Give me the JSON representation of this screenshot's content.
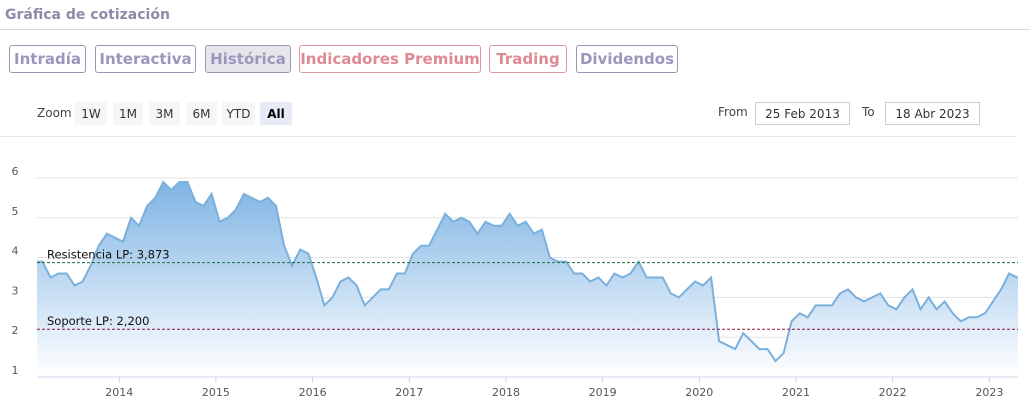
{
  "header": {
    "title": "Gráfica de cotización"
  },
  "tabs": [
    {
      "label": "Intradía",
      "state": "normal"
    },
    {
      "label": "Interactiva",
      "state": "normal"
    },
    {
      "label": "Histórica",
      "state": "active"
    },
    {
      "label": "Indicadores Premium",
      "state": "premium"
    },
    {
      "label": "Trading",
      "state": "premium"
    },
    {
      "label": "Dividendos",
      "state": "normal"
    }
  ],
  "range_selector": {
    "zoom_label": "Zoom",
    "buttons": [
      "1W",
      "1M",
      "3M",
      "6M",
      "YTD",
      "All"
    ],
    "selected": "All",
    "from_label": "From",
    "from_value": "25 Feb 2013",
    "to_label": "To",
    "to_value": "18 Abr 2023"
  },
  "colors": {
    "line": "#7ab0dc",
    "fill_top": "#7fb4e4",
    "resistance": "#1d6b3a",
    "support": "#8b1a3a"
  },
  "chart_data": {
    "type": "area",
    "title": "",
    "xlabel": "",
    "ylabel": "",
    "ylim": [
      1,
      6
    ],
    "yticks": [
      "1",
      "2",
      "3",
      "4",
      "5",
      "6"
    ],
    "xticks": [
      "2014",
      "2015",
      "2016",
      "2017",
      "2018",
      "2019",
      "2020",
      "2021",
      "2022",
      "2023"
    ],
    "xlim": [
      "2013-02-25",
      "2023-04-18"
    ],
    "grid": true,
    "annotations": [
      {
        "label": "Resistencia LP: 3,873",
        "value": 3.873,
        "style": "dashed"
      },
      {
        "label": "Soporte LP: 2,200",
        "value": 2.2,
        "style": "dashed"
      }
    ],
    "x": [
      "2013-03",
      "2013-04",
      "2013-05",
      "2013-06",
      "2013-07",
      "2013-08",
      "2013-09",
      "2013-10",
      "2013-11",
      "2013-12",
      "2014-01",
      "2014-02",
      "2014-03",
      "2014-04",
      "2014-05",
      "2014-06",
      "2014-07",
      "2014-08",
      "2014-09",
      "2014-10",
      "2014-11",
      "2014-12",
      "2015-01",
      "2015-02",
      "2015-03",
      "2015-04",
      "2015-05",
      "2015-06",
      "2015-07",
      "2015-08",
      "2015-09",
      "2015-10",
      "2015-11",
      "2015-12",
      "2016-01",
      "2016-02",
      "2016-03",
      "2016-04",
      "2016-05",
      "2016-06",
      "2016-07",
      "2016-08",
      "2016-09",
      "2016-10",
      "2016-11",
      "2016-12",
      "2017-01",
      "2017-02",
      "2017-03",
      "2017-04",
      "2017-05",
      "2017-06",
      "2017-07",
      "2017-08",
      "2017-09",
      "2017-10",
      "2017-11",
      "2017-12",
      "2018-01",
      "2018-02",
      "2018-03",
      "2018-04",
      "2018-05",
      "2018-06",
      "2018-07",
      "2018-08",
      "2018-09",
      "2018-10",
      "2018-11",
      "2018-12",
      "2019-01",
      "2019-02",
      "2019-03",
      "2019-04",
      "2019-05",
      "2019-06",
      "2019-07",
      "2019-08",
      "2019-09",
      "2019-10",
      "2019-11",
      "2019-12",
      "2020-01",
      "2020-02",
      "2020-03",
      "2020-04",
      "2020-05",
      "2020-06",
      "2020-07",
      "2020-08",
      "2020-09",
      "2020-10",
      "2020-11",
      "2020-12",
      "2021-01",
      "2021-02",
      "2021-03",
      "2021-04",
      "2021-05",
      "2021-06",
      "2021-07",
      "2021-08",
      "2021-09",
      "2021-10",
      "2021-11",
      "2021-12",
      "2022-01",
      "2022-02",
      "2022-03",
      "2022-04",
      "2022-05",
      "2022-06",
      "2022-07",
      "2022-08",
      "2022-09",
      "2022-10",
      "2022-11",
      "2022-12",
      "2023-01",
      "2023-02",
      "2023-03",
      "2023-04"
    ],
    "values": [
      3.9,
      3.5,
      3.6,
      3.6,
      3.3,
      3.4,
      3.8,
      4.3,
      4.6,
      4.5,
      4.4,
      5.0,
      4.8,
      5.3,
      5.5,
      5.9,
      5.7,
      5.9,
      5.9,
      5.4,
      5.3,
      5.6,
      4.9,
      5.0,
      5.2,
      5.6,
      5.5,
      5.4,
      5.5,
      5.3,
      4.3,
      3.8,
      4.2,
      4.1,
      3.5,
      2.8,
      3.0,
      3.4,
      3.5,
      3.3,
      2.8,
      3.0,
      3.2,
      3.2,
      3.6,
      3.6,
      4.1,
      4.3,
      4.3,
      4.7,
      5.1,
      4.9,
      5.0,
      4.9,
      4.6,
      4.9,
      4.8,
      4.8,
      5.1,
      4.8,
      4.9,
      4.6,
      4.7,
      4.0,
      3.9,
      3.9,
      3.6,
      3.6,
      3.4,
      3.5,
      3.3,
      3.6,
      3.5,
      3.6,
      3.9,
      3.5,
      3.5,
      3.5,
      3.1,
      3.0,
      3.2,
      3.4,
      3.3,
      3.5,
      1.9,
      1.8,
      1.7,
      2.1,
      1.9,
      1.7,
      1.7,
      1.4,
      1.6,
      2.4,
      2.6,
      2.5,
      2.8,
      2.8,
      2.8,
      3.1,
      3.2,
      3.0,
      2.9,
      3.0,
      3.1,
      2.8,
      2.7,
      3.0,
      3.2,
      2.7,
      3.0,
      2.7,
      2.9,
      2.6,
      2.4,
      2.5,
      2.5,
      2.6,
      2.9,
      3.2,
      3.6,
      3.5
    ]
  }
}
